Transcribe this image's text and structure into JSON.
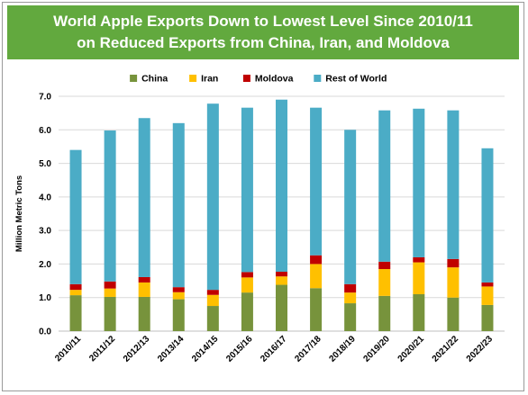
{
  "chart_data": {
    "type": "bar",
    "stacked": true,
    "title": [
      "World Apple Exports Down to Lowest Level Since 2010/11",
      "on Reduced Exports from China, Iran, and Moldova"
    ],
    "ylabel": "Million Metric Tons",
    "xlabel": "",
    "ylim": [
      0,
      7
    ],
    "yticks": [
      "0.0",
      "1.0",
      "2.0",
      "3.0",
      "4.0",
      "5.0",
      "6.0",
      "7.0"
    ],
    "grid": true,
    "legend_position": "top",
    "categories": [
      "2010/11",
      "2011/12",
      "2012/13",
      "2013/14",
      "2014/15",
      "2015/16",
      "2016/17",
      "2017/18",
      "2018/19",
      "2019/20",
      "2020/21",
      "2021/22",
      "2022/23"
    ],
    "series": [
      {
        "name": "China",
        "color": "#77933c",
        "values": [
          1.07,
          1.02,
          1.02,
          0.95,
          0.75,
          1.15,
          1.38,
          1.28,
          0.83,
          1.05,
          1.1,
          1.0,
          0.78
        ]
      },
      {
        "name": "Iran",
        "color": "#ffc000",
        "values": [
          0.16,
          0.25,
          0.43,
          0.21,
          0.33,
          0.45,
          0.25,
          0.72,
          0.32,
          0.8,
          0.95,
          0.9,
          0.55
        ]
      },
      {
        "name": "Moldova",
        "color": "#c00000",
        "values": [
          0.17,
          0.21,
          0.16,
          0.15,
          0.15,
          0.16,
          0.14,
          0.26,
          0.25,
          0.22,
          0.15,
          0.25,
          0.12
        ]
      },
      {
        "name": "Rest of World",
        "color": "#4bacc6",
        "values": [
          4.0,
          4.5,
          4.74,
          4.89,
          5.55,
          4.9,
          5.13,
          4.4,
          4.6,
          4.51,
          4.43,
          4.43,
          4.0
        ]
      }
    ]
  }
}
